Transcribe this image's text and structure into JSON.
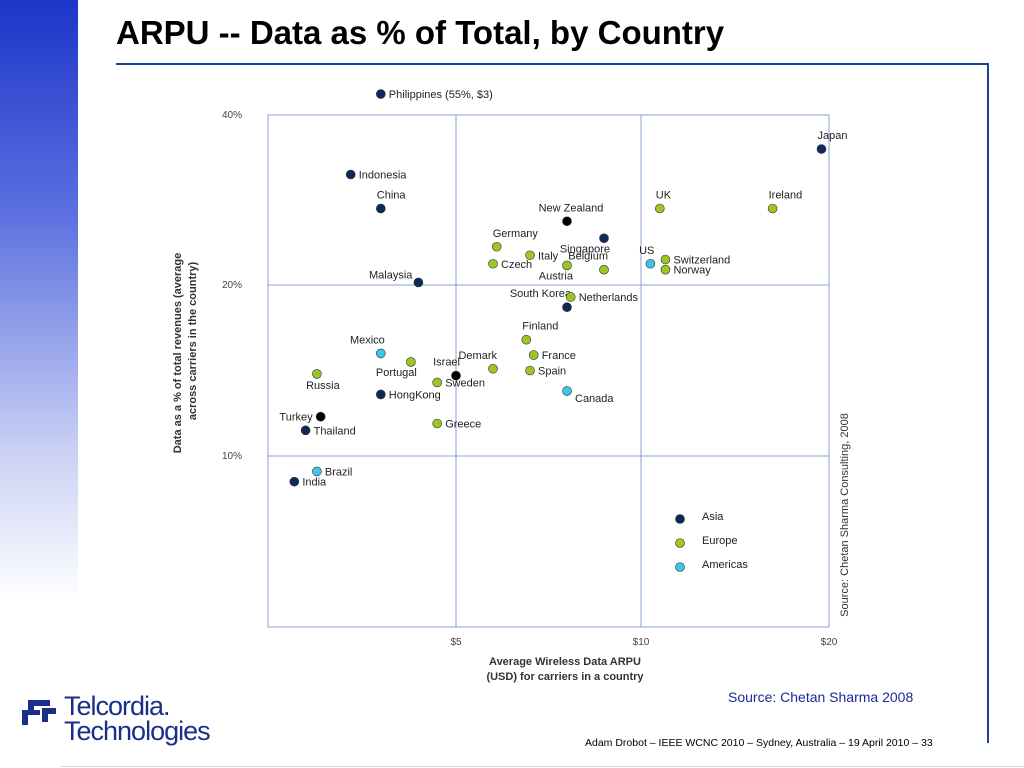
{
  "slide": {
    "title": "ARPU -- Data as % of Total, by Country",
    "source_note": "Source:  Chetan Sharma 2008",
    "footer": "Adam Drobot – IEEE WCNC 2010 – Sydney, Australia – 19 April 2010  – 33",
    "logo_line1": "Telcordia.",
    "logo_line2": "Technologies"
  },
  "colors": {
    "Asia": "#0b2a55",
    "Europe": "#9cc625",
    "Americas": "#3fc3ea",
    "other": "#000000",
    "accent": "#1f3fa0"
  },
  "chart_data": {
    "type": "scatter",
    "xlabel": "Average Wireless Data ARPU\n(USD) for carriers in a country",
    "ylabel": "Data as a % of total revenues (average\nacross carriers in the country)",
    "side_credit": "Source: Chetan Sharma Consulting, 2008",
    "x_ticks": [
      {
        "value": 5,
        "label": "$5"
      },
      {
        "value": 10,
        "label": "$10"
      },
      {
        "value": 20,
        "label": "$20"
      }
    ],
    "y_ticks": [
      {
        "value": 10,
        "label": "10%"
      },
      {
        "value": 20,
        "label": "20%"
      },
      {
        "value": 40,
        "label": "40%"
      }
    ],
    "grid": true,
    "legend_position": "bottom-right",
    "legend": [
      {
        "name": "Asia",
        "group": "Asia"
      },
      {
        "name": "Europe",
        "group": "Europe"
      },
      {
        "name": "Americas",
        "group": "Americas"
      }
    ],
    "points": [
      {
        "label": "Philippines (55%, $3)",
        "x": 3.0,
        "y": 55,
        "group": "Asia",
        "lp": "right"
      },
      {
        "label": "Japan",
        "x": 19.6,
        "y": 36,
        "group": "Asia",
        "lp": "above-right"
      },
      {
        "label": "Indonesia",
        "x": 2.2,
        "y": 33,
        "group": "Asia",
        "lp": "right"
      },
      {
        "label": "China",
        "x": 3.0,
        "y": 29,
        "group": "Asia",
        "lp": "above-right"
      },
      {
        "label": "UK",
        "x": 11.0,
        "y": 29,
        "group": "Europe",
        "lp": "above-right"
      },
      {
        "label": "Ireland",
        "x": 17.0,
        "y": 29,
        "group": "Europe",
        "lp": "above-right"
      },
      {
        "label": "New Zealand",
        "x": 8.0,
        "y": 27.5,
        "group": "other",
        "lp": "nz"
      },
      {
        "label": "Singapore",
        "x": 9.0,
        "y": 25.5,
        "group": "Asia",
        "lp": "below-left"
      },
      {
        "label": "Germany",
        "x": 6.1,
        "y": 24.5,
        "group": "Europe",
        "lp": "above-right"
      },
      {
        "label": "Italy",
        "x": 7.0,
        "y": 23.5,
        "group": "Europe",
        "lp": "right"
      },
      {
        "label": "Czech",
        "x": 6.0,
        "y": 22.5,
        "group": "Europe",
        "lp": "right"
      },
      {
        "label": "Austria",
        "x": 8.0,
        "y": 22.3,
        "group": "Europe",
        "lp": "below-left"
      },
      {
        "label": "Belgium",
        "x": 9.0,
        "y": 21.8,
        "group": "Europe",
        "lp": "above-left"
      },
      {
        "label": "US",
        "x": 10.5,
        "y": 22.5,
        "group": "Americas",
        "lp": "above-left"
      },
      {
        "label": "Switzerland",
        "x": 11.3,
        "y": 23.0,
        "group": "Europe",
        "lp": "right"
      },
      {
        "label": "Norway",
        "x": 11.3,
        "y": 21.8,
        "group": "Europe",
        "lp": "right"
      },
      {
        "label": "Malaysia",
        "x": 4.0,
        "y": 20.3,
        "group": "Asia",
        "lp": "left-up"
      },
      {
        "label": "South Korea",
        "x": 8.0,
        "y": 18.7,
        "group": "Asia",
        "lp": "above-left"
      },
      {
        "label": "Netherlands",
        "x": 8.1,
        "y": 19.3,
        "group": "Europe",
        "lp": "right"
      },
      {
        "label": "Finland",
        "x": 6.9,
        "y": 16.8,
        "group": "Europe",
        "lp": "above-right"
      },
      {
        "label": "Mexico",
        "x": 3.0,
        "y": 16.0,
        "group": "Americas",
        "lp": "above-left"
      },
      {
        "label": "France",
        "x": 7.1,
        "y": 15.9,
        "group": "Europe",
        "lp": "right"
      },
      {
        "label": "Portugal",
        "x": 3.8,
        "y": 15.5,
        "group": "Europe",
        "lp": "below-left"
      },
      {
        "label": "Demark",
        "x": 6.0,
        "y": 15.1,
        "group": "Europe",
        "lp": "above-left"
      },
      {
        "label": "Spain",
        "x": 7.0,
        "y": 15.0,
        "group": "Europe",
        "lp": "right"
      },
      {
        "label": "Israel",
        "x": 5.0,
        "y": 14.7,
        "group": "other",
        "lp": "above-left"
      },
      {
        "label": "Russia",
        "x": 1.3,
        "y": 14.8,
        "group": "Europe",
        "lp": "below"
      },
      {
        "label": "Sweden",
        "x": 4.5,
        "y": 14.3,
        "group": "Europe",
        "lp": "right"
      },
      {
        "label": "Canada",
        "x": 8.0,
        "y": 13.8,
        "group": "Americas",
        "lp": "below-right"
      },
      {
        "label": "HongKong",
        "x": 3.0,
        "y": 13.6,
        "group": "Asia",
        "lp": "right"
      },
      {
        "label": "Turkey",
        "x": 1.4,
        "y": 12.3,
        "group": "other",
        "lp": "left"
      },
      {
        "label": "Greece",
        "x": 4.5,
        "y": 11.9,
        "group": "Europe",
        "lp": "right"
      },
      {
        "label": "Thailand",
        "x": 1.0,
        "y": 11.5,
        "group": "Asia",
        "lp": "right"
      },
      {
        "label": "Brazil",
        "x": 1.3,
        "y": 9.1,
        "group": "Americas",
        "lp": "right"
      },
      {
        "label": "India",
        "x": 0.7,
        "y": 8.5,
        "group": "Asia",
        "lp": "right"
      }
    ]
  }
}
